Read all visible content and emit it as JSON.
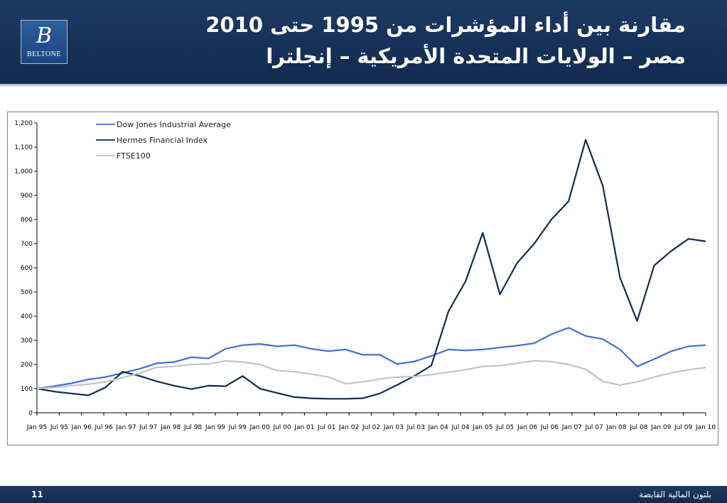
{
  "header": {
    "title_line1": "مقارنة بين أداء المؤشرات من 1995 حتى 2010",
    "title_line2": "مصر – الولايات المتحدة الأمريكية – إنجلترا",
    "logo_mark": "B",
    "logo_text": "BELTONE"
  },
  "footer": {
    "page_number": "11",
    "company": "بلتون المالية القابضة"
  },
  "colors": {
    "header_bg": "#163157",
    "dow": "#3f6fd8",
    "hermes": "#0f2d52",
    "ftse": "#c3c3c3"
  },
  "chart_data": {
    "type": "line",
    "title": "",
    "xlabel": "",
    "ylabel": "",
    "ylim": [
      0,
      1200
    ],
    "yticks": [
      0,
      100,
      200,
      300,
      400,
      500,
      600,
      700,
      800,
      900,
      1000,
      1100,
      1200
    ],
    "ytick_labels": [
      "0",
      "100",
      "200",
      "300",
      "400",
      "500",
      "600",
      "700",
      "800",
      "900",
      "1,000",
      "1,100",
      "1,200"
    ],
    "x_tick_labels": [
      "Jan 95",
      "Jul 95",
      "Jan 96",
      "Jul 96",
      "Jan 97",
      "Jul 97",
      "Jan 98",
      "Jul 98",
      "Jan 99",
      "Jul 99",
      "Jan 00",
      "Jul 00",
      "Jan 01",
      "Jul 01",
      "Jan 02",
      "Jul 02",
      "Jan 03",
      "Jul 03",
      "Jan 04",
      "Jul 04",
      "Jan 05",
      "Jul 05",
      "Jan 06",
      "Jul 06",
      "Jan 07",
      "Jul 07",
      "Jan 08",
      "Jul 08",
      "Jan 09",
      "Jul 09",
      "Jan 10"
    ],
    "legend_position": "top-left",
    "grid": false,
    "series": [
      {
        "name": "Dow Jones Industrial Average",
        "color": "#3f6fd8",
        "values": [
          100,
          110,
          122,
          138,
          148,
          165,
          182,
          205,
          210,
          230,
          225,
          265,
          280,
          285,
          275,
          280,
          265,
          255,
          262,
          240,
          240,
          202,
          212,
          235,
          262,
          258,
          262,
          270,
          278,
          288,
          325,
          352,
          318,
          305,
          262,
          192,
          222,
          255,
          275,
          280
        ]
      },
      {
        "name": "Hermes Financial Index",
        "color": "#0f2d52",
        "values": [
          100,
          88,
          80,
          72,
          105,
          170,
          152,
          130,
          112,
          98,
          112,
          110,
          152,
          100,
          82,
          65,
          60,
          58,
          58,
          60,
          80,
          115,
          152,
          195,
          420,
          545,
          745,
          490,
          620,
          700,
          800,
          875,
          1130,
          940,
          560,
          380,
          610,
          670,
          720,
          710
        ]
      },
      {
        "name": "FTSE100",
        "color": "#c3c3c3",
        "values": [
          100,
          105,
          112,
          118,
          128,
          145,
          165,
          188,
          192,
          200,
          202,
          215,
          210,
          200,
          175,
          170,
          160,
          148,
          120,
          128,
          140,
          148,
          150,
          158,
          168,
          178,
          192,
          195,
          205,
          215,
          212,
          200,
          180,
          130,
          115,
          128,
          148,
          165,
          178,
          188
        ]
      }
    ]
  }
}
